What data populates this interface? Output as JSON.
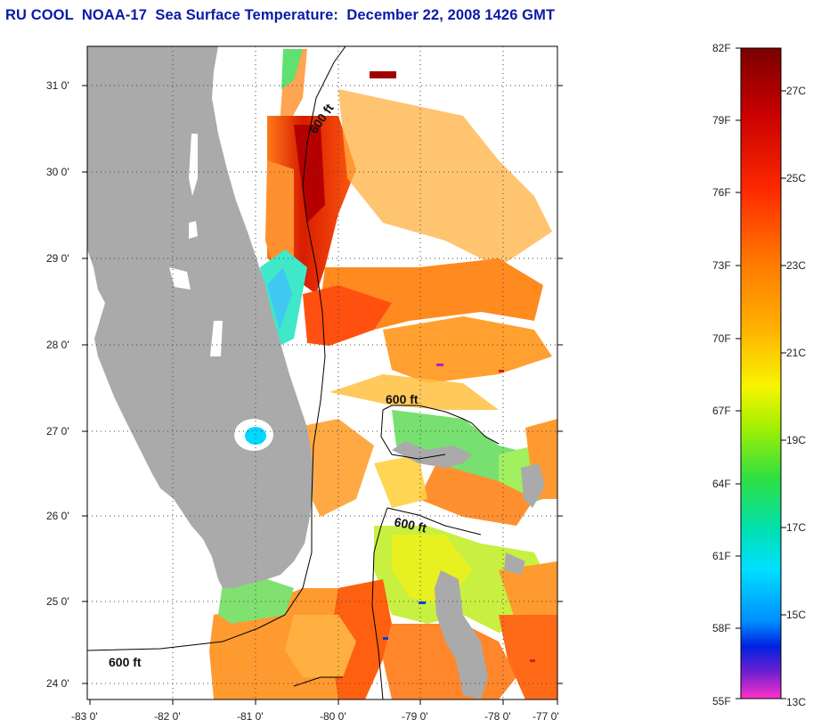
{
  "title": "RU COOL  NOAA-17  Sea Surface Temperature:  December 22, 2008 1426 GMT",
  "map": {
    "lon_ticks": [
      "-83 0'",
      "-82 0'",
      "-81 0'",
      "-80 0'",
      "-79 0'",
      "-78 0'",
      "-77 0'"
    ],
    "lat_ticks": [
      "31 0'",
      "30 0'",
      "29 0'",
      "28 0'",
      "27 0'",
      "26 0'",
      "25 0'",
      "24 0'"
    ],
    "isobath_labels": [
      "600 ft",
      "600 ft",
      "600 ft",
      "600 ft"
    ],
    "land_color": "#aaaaaa",
    "grid": true
  },
  "colorbar": {
    "fahrenheit_labels": [
      "82F",
      "79F",
      "76F",
      "73F",
      "70F",
      "67F",
      "64F",
      "61F",
      "58F",
      "55F"
    ],
    "celsius_labels": [
      "27C",
      "25C",
      "23C",
      "21C",
      "19C",
      "17C",
      "15C",
      "13C"
    ],
    "colors": [
      "#7a0000",
      "#c80000",
      "#ff2a00",
      "#ff7a00",
      "#ffb000",
      "#f8f400",
      "#a8f000",
      "#30e040",
      "#00e0b0",
      "#00e0ff",
      "#0090ff",
      "#0020e0",
      "#7020d0",
      "#ff30c8"
    ]
  }
}
